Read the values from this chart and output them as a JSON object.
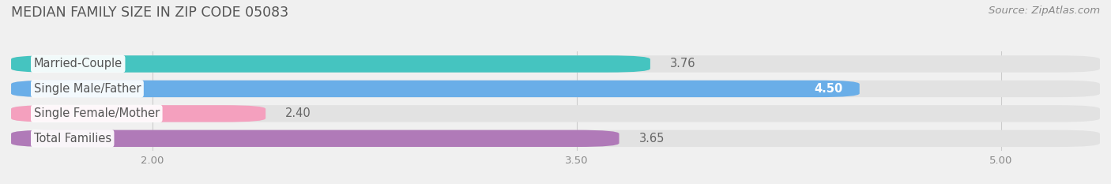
{
  "title": "MEDIAN FAMILY SIZE IN ZIP CODE 05083",
  "source": "Source: ZipAtlas.com",
  "categories": [
    "Married-Couple",
    "Single Male/Father",
    "Single Female/Mother",
    "Total Families"
  ],
  "values": [
    3.76,
    4.5,
    2.4,
    3.65
  ],
  "bar_colors": [
    "#45c4c0",
    "#6aaee8",
    "#f4a0be",
    "#b07ab8"
  ],
  "xlim_data_min": 1.5,
  "xlim_data_max": 5.35,
  "xticks": [
    2.0,
    3.5,
    5.0
  ],
  "xtick_labels": [
    "2.00",
    "3.50",
    "5.00"
  ],
  "bar_height": 0.68,
  "bar_gap": 0.12,
  "label_fontsize": 10.5,
  "value_fontsize": 10.5,
  "title_fontsize": 12.5,
  "source_fontsize": 9.5,
  "bg_color": "#f0f0f0",
  "bar_bg_color": "#e2e2e2",
  "label_color": "#555555",
  "value_color_inside": "#ffffff",
  "value_color_outside": "#666666",
  "grid_color": "#cccccc",
  "title_color": "#555555",
  "source_color": "#888888",
  "tick_color": "#888888"
}
